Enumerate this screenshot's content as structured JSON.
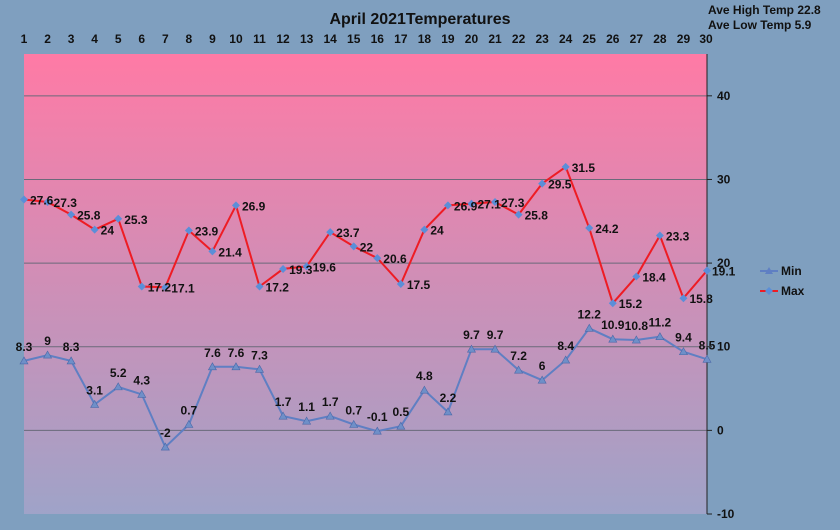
{
  "chart_data": {
    "type": "line",
    "title": "April 2021Temperatures",
    "annotations": [
      "Ave High Temp 22.8",
      "Ave Low Temp 5.9"
    ],
    "x": [
      1,
      2,
      3,
      4,
      5,
      6,
      7,
      8,
      9,
      10,
      11,
      12,
      13,
      14,
      15,
      16,
      17,
      18,
      19,
      20,
      21,
      22,
      23,
      24,
      25,
      26,
      27,
      28,
      29,
      30
    ],
    "x_tick_labels": [
      "1",
      "2",
      "3",
      "4",
      "5",
      "6",
      "7",
      "8",
      "9",
      "10",
      "11",
      "12",
      "13",
      "14",
      "15",
      "16",
      "17",
      "18",
      "19",
      "20",
      "21",
      "22",
      "23",
      "24",
      "25",
      "26",
      "27",
      "28",
      "29",
      "30"
    ],
    "ylim": [
      -10,
      45
    ],
    "y_ticks": [
      -10,
      0,
      10,
      20,
      30,
      40
    ],
    "grid": true,
    "legend_position": "right",
    "series": [
      {
        "name": "Min",
        "color": "#5f7fc3",
        "marker_color": "#6f8fc8",
        "values": [
          8.3,
          9,
          8.3,
          3.1,
          5.2,
          4.3,
          -2,
          0.7,
          7.6,
          7.6,
          7.3,
          1.7,
          1.1,
          1.7,
          0.7,
          -0.1,
          0.5,
          4.8,
          2.2,
          9.7,
          9.7,
          7.2,
          6,
          8.4,
          12.2,
          10.9,
          10.8,
          11.2,
          9.4,
          8.5
        ],
        "labels": [
          "8.3",
          "9",
          "8.3",
          "3.1",
          "5.2",
          "4.3",
          "-2",
          "0.7",
          "7.6",
          "7.6",
          "7.3",
          "1.7",
          "1.1",
          "1.7",
          "0.7",
          "-0.1",
          "0.5",
          "4.8",
          "2.2",
          "9.7",
          "9.7",
          "7.2",
          "6",
          "8.4",
          "12.2",
          "10.9",
          "10.8",
          "11.2",
          "9.4",
          "8.5"
        ]
      },
      {
        "name": "Max",
        "color": "#ee1c24",
        "marker_color": "#5b8ed8",
        "values": [
          27.6,
          27.3,
          25.8,
          24,
          25.3,
          17.2,
          17.1,
          23.9,
          21.4,
          26.9,
          17.2,
          19.3,
          19.6,
          23.7,
          22,
          20.6,
          17.5,
          24,
          26.9,
          27.1,
          27.3,
          25.8,
          29.5,
          31.5,
          24.2,
          15.2,
          18.4,
          23.3,
          15.8,
          19.1
        ],
        "labels": [
          "27.6",
          "27.3",
          "25.8",
          "24",
          "25.3",
          "17.2",
          "17.1",
          "23.9",
          "21.4",
          "26.9",
          "17.2",
          "19.3",
          "19.6",
          "23.7",
          "22",
          "20.6",
          "17.5",
          "24",
          "26.9",
          "27.1",
          "27.3",
          "25.8",
          "29.5",
          "31.5",
          "24.2",
          "15.2",
          "18.4",
          "23.3",
          "15.8",
          "19.1"
        ]
      }
    ],
    "colors": {
      "page_bg": "#7f9fbf",
      "plot_top": "#ff7aa5",
      "plot_bottom": "#9fa3c8",
      "gridline": "#6a6a7a",
      "axis": "#222222"
    }
  }
}
